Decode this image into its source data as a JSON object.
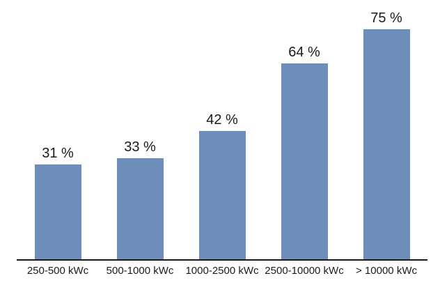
{
  "chart_data": {
    "type": "bar",
    "title": "",
    "xlabel": "",
    "ylabel": "",
    "categories": [
      "250-500 kWc",
      "500-1000 kWc",
      "1000-2500 kWc",
      "2500-10000 kWc",
      "> 10000 kWc"
    ],
    "values": [
      31,
      33,
      42,
      64,
      75
    ],
    "value_labels": [
      "31 %",
      "33 %",
      "42 %",
      "64 %",
      "75 %"
    ],
    "ylim": [
      0,
      80
    ],
    "grid": false,
    "legend": false,
    "y_axis_visible": false,
    "x_axis_visible": true,
    "colors": {
      "bar_fill": "#6d8dbb",
      "axis_line": "#1a1a1a",
      "label_text": "#1a1a1a",
      "background": "#ffffff"
    }
  }
}
